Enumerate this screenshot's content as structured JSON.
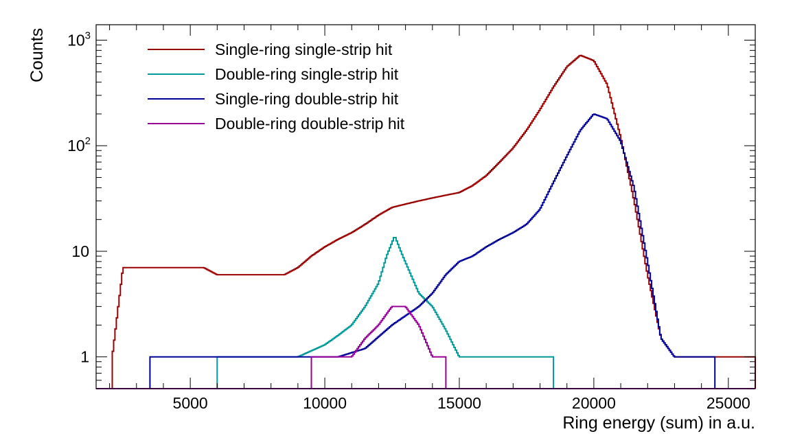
{
  "chart_data": {
    "type": "line",
    "title": "",
    "xlabel": "Ring energy (sum) in a.u.",
    "ylabel": "Counts",
    "xlim": [
      1500,
      26000
    ],
    "ylim": [
      0.5,
      1400
    ],
    "yscale": "log",
    "grid": false,
    "legend_position": "top-left",
    "x_ticks": [
      5000,
      10000,
      15000,
      20000,
      25000
    ],
    "x_tick_labels": [
      "5000",
      "10000",
      "15000",
      "20000",
      "25000"
    ],
    "y_ticks": [
      1,
      10,
      100,
      1000
    ],
    "y_tick_labels": [
      {
        "base": "1",
        "exp": ""
      },
      {
        "base": "10",
        "exp": ""
      },
      {
        "base": "10",
        "exp": "2"
      },
      {
        "base": "10",
        "exp": "3"
      }
    ],
    "series": [
      {
        "name": "Single-ring single-strip hit",
        "color": "#990000",
        "x": [
          2100,
          2500,
          3000,
          3500,
          4000,
          4500,
          5000,
          5500,
          6000,
          6500,
          7000,
          7500,
          8000,
          8500,
          9000,
          9500,
          10000,
          10500,
          11000,
          11500,
          12000,
          12500,
          13000,
          13500,
          14000,
          14500,
          15000,
          15500,
          16000,
          16500,
          17000,
          17500,
          18000,
          18500,
          19000,
          19500,
          20000,
          20500,
          21000,
          21500,
          22000,
          22500,
          23000,
          23500,
          24000,
          24500,
          25000,
          25500,
          26000
        ],
        "values": [
          1,
          7,
          7,
          7,
          7,
          7,
          7,
          7,
          6,
          6,
          6,
          6,
          6,
          6,
          7,
          9,
          11,
          13,
          15,
          18,
          22,
          26,
          28,
          30,
          32,
          34,
          36,
          42,
          52,
          70,
          95,
          140,
          220,
          360,
          560,
          720,
          640,
          380,
          120,
          30,
          6,
          1.5,
          1,
          1,
          1,
          1,
          1,
          1,
          1
        ]
      },
      {
        "name": "Double-ring single-strip hit",
        "color": "#009999",
        "x": [
          6000,
          7000,
          8000,
          9000,
          10000,
          10500,
          11000,
          11500,
          12000,
          12300,
          12600,
          12900,
          13200,
          13500,
          14000,
          14500,
          15000,
          15500,
          16000,
          16500,
          17000,
          18500
        ],
        "values": [
          1,
          1,
          1,
          1,
          1.3,
          1.6,
          2,
          3,
          5,
          9,
          14,
          9,
          6,
          4,
          3,
          1.8,
          1,
          1,
          1,
          1,
          1,
          1
        ]
      },
      {
        "name": "Single-ring double-strip hit",
        "color": "#000099",
        "x": [
          3500,
          4500,
          5500,
          6500,
          7500,
          8500,
          9500,
          10500,
          11500,
          12500,
          13500,
          14000,
          14500,
          15000,
          15500,
          16000,
          16500,
          17000,
          17500,
          18000,
          18500,
          19000,
          19500,
          20000,
          20500,
          21000,
          21500,
          22000,
          22500,
          23000,
          23500,
          24000,
          24500
        ],
        "values": [
          1,
          1,
          1,
          1,
          1,
          1,
          1,
          1,
          1.2,
          2,
          3,
          4,
          6,
          8,
          9,
          11,
          13,
          15,
          18,
          25,
          45,
          80,
          140,
          200,
          180,
          110,
          40,
          8,
          1.5,
          1,
          1,
          1,
          1
        ]
      },
      {
        "name": "Double-ring double-strip hit",
        "color": "#990099",
        "x": [
          9500,
          10500,
          11000,
          11500,
          12000,
          12500,
          13000,
          13500,
          14000,
          14500
        ],
        "values": [
          1,
          1,
          1,
          1.5,
          2,
          3,
          3,
          2,
          1,
          1
        ]
      }
    ]
  }
}
